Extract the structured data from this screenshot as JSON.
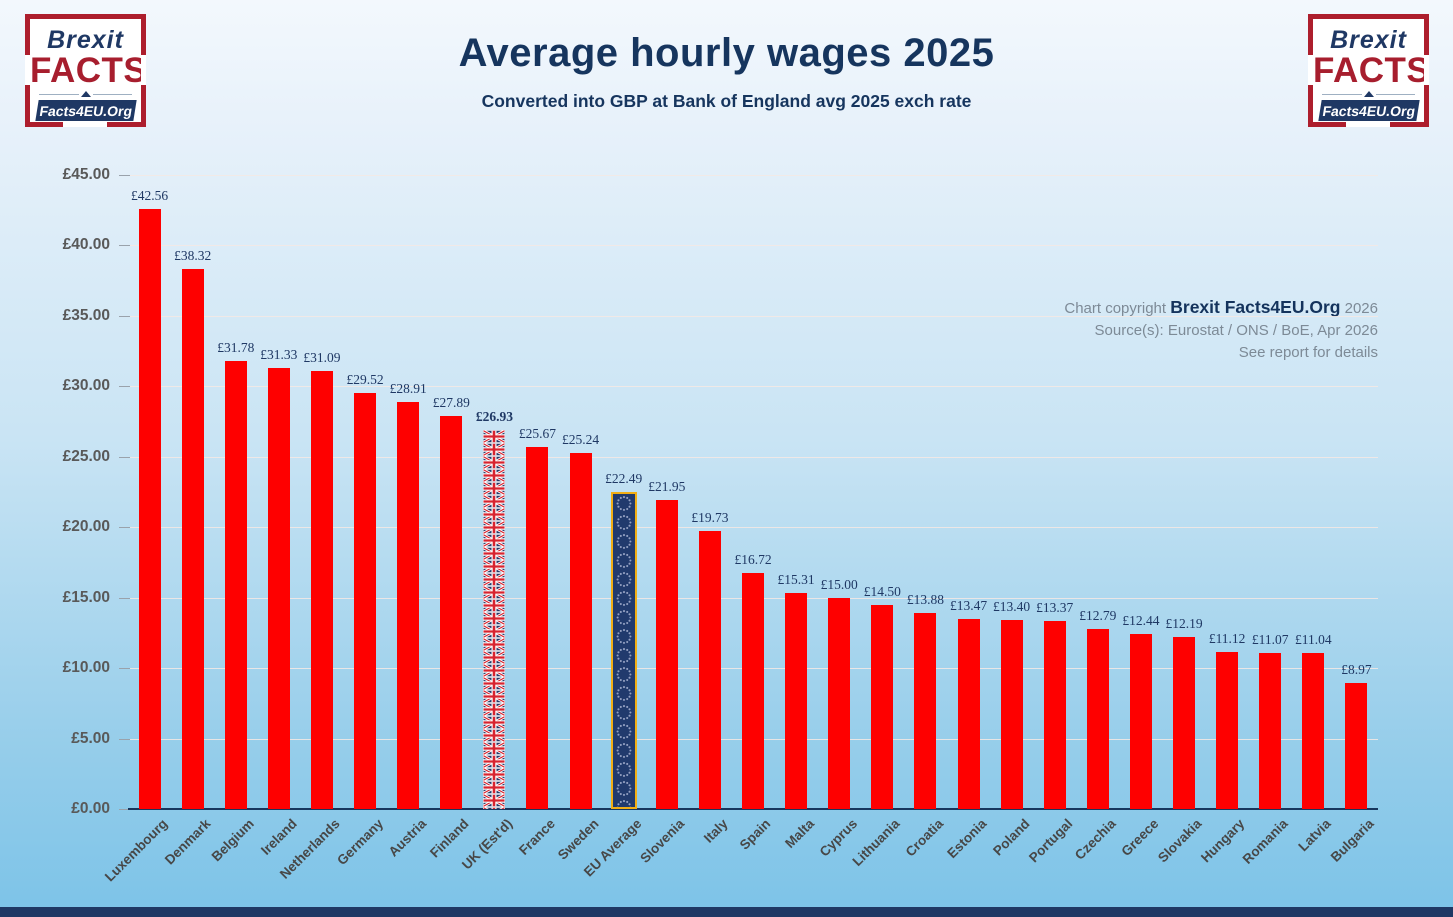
{
  "logo": {
    "brexit": "Brexit",
    "facts": "FACTS",
    "banner": "Facts4EU.Org"
  },
  "copyright": {
    "prefix": "Chart copyright ",
    "brand": "Brexit Facts4EU.Org",
    "year": " 2026",
    "source": "Source(s): Eurostat /  ONS / BoE, Apr 2026",
    "note": "See report for details"
  },
  "chart_data": {
    "type": "bar",
    "title": "Average hourly wages 2025",
    "subtitle": "Converted into GBP at Bank of England avg 2025 exch rate",
    "categories": [
      "Luxembourg",
      "Denmark",
      "Belgium",
      "Ireland",
      "Netherlands",
      "Germany",
      "Austria",
      "Finland",
      "UK (Est'd)",
      "France",
      "Sweden",
      "EU Average",
      "Slovenia",
      "Italy",
      "Spain",
      "Malta",
      "Cyprus",
      "Lithuania",
      "Croatia",
      "Estonia",
      "Poland",
      "Portugal",
      "Czechia",
      "Greece",
      "Slovakia",
      "Hungary",
      "Romania",
      "Latvia",
      "Bulgaria"
    ],
    "values": [
      42.56,
      38.32,
      31.78,
      31.33,
      31.09,
      29.52,
      28.91,
      27.89,
      26.93,
      25.67,
      25.24,
      22.49,
      21.95,
      19.73,
      16.72,
      15.31,
      15.0,
      14.5,
      13.88,
      13.47,
      13.4,
      13.37,
      12.79,
      12.44,
      12.19,
      11.12,
      11.07,
      11.04,
      8.97
    ],
    "currency_prefix": "£",
    "ylabel": "",
    "xlabel": "",
    "ylim": [
      0,
      45
    ],
    "ytick_step": 5,
    "grid": true,
    "legend_position": "none",
    "special_bars": {
      "UK (Est'd)": "union-jack-pattern",
      "EU Average": "eu-flag-pattern"
    },
    "bold_value_labels": [
      "UK (Est'd)"
    ],
    "colors": {
      "bar_red": "#fe0000",
      "navy": "#17365d",
      "uk_flag_blue": "#263a6b",
      "uk_flag_red": "#d8232f",
      "eu_gold_border": "#f2ae14",
      "eu_field_blue": "#213a6d",
      "y_tick_text": "#595959",
      "x_tick_text": "#474747",
      "value_label_text": "#1f3864",
      "grid_line": "#f1e6e0",
      "background_bottom_strip": "#1f3864"
    }
  }
}
